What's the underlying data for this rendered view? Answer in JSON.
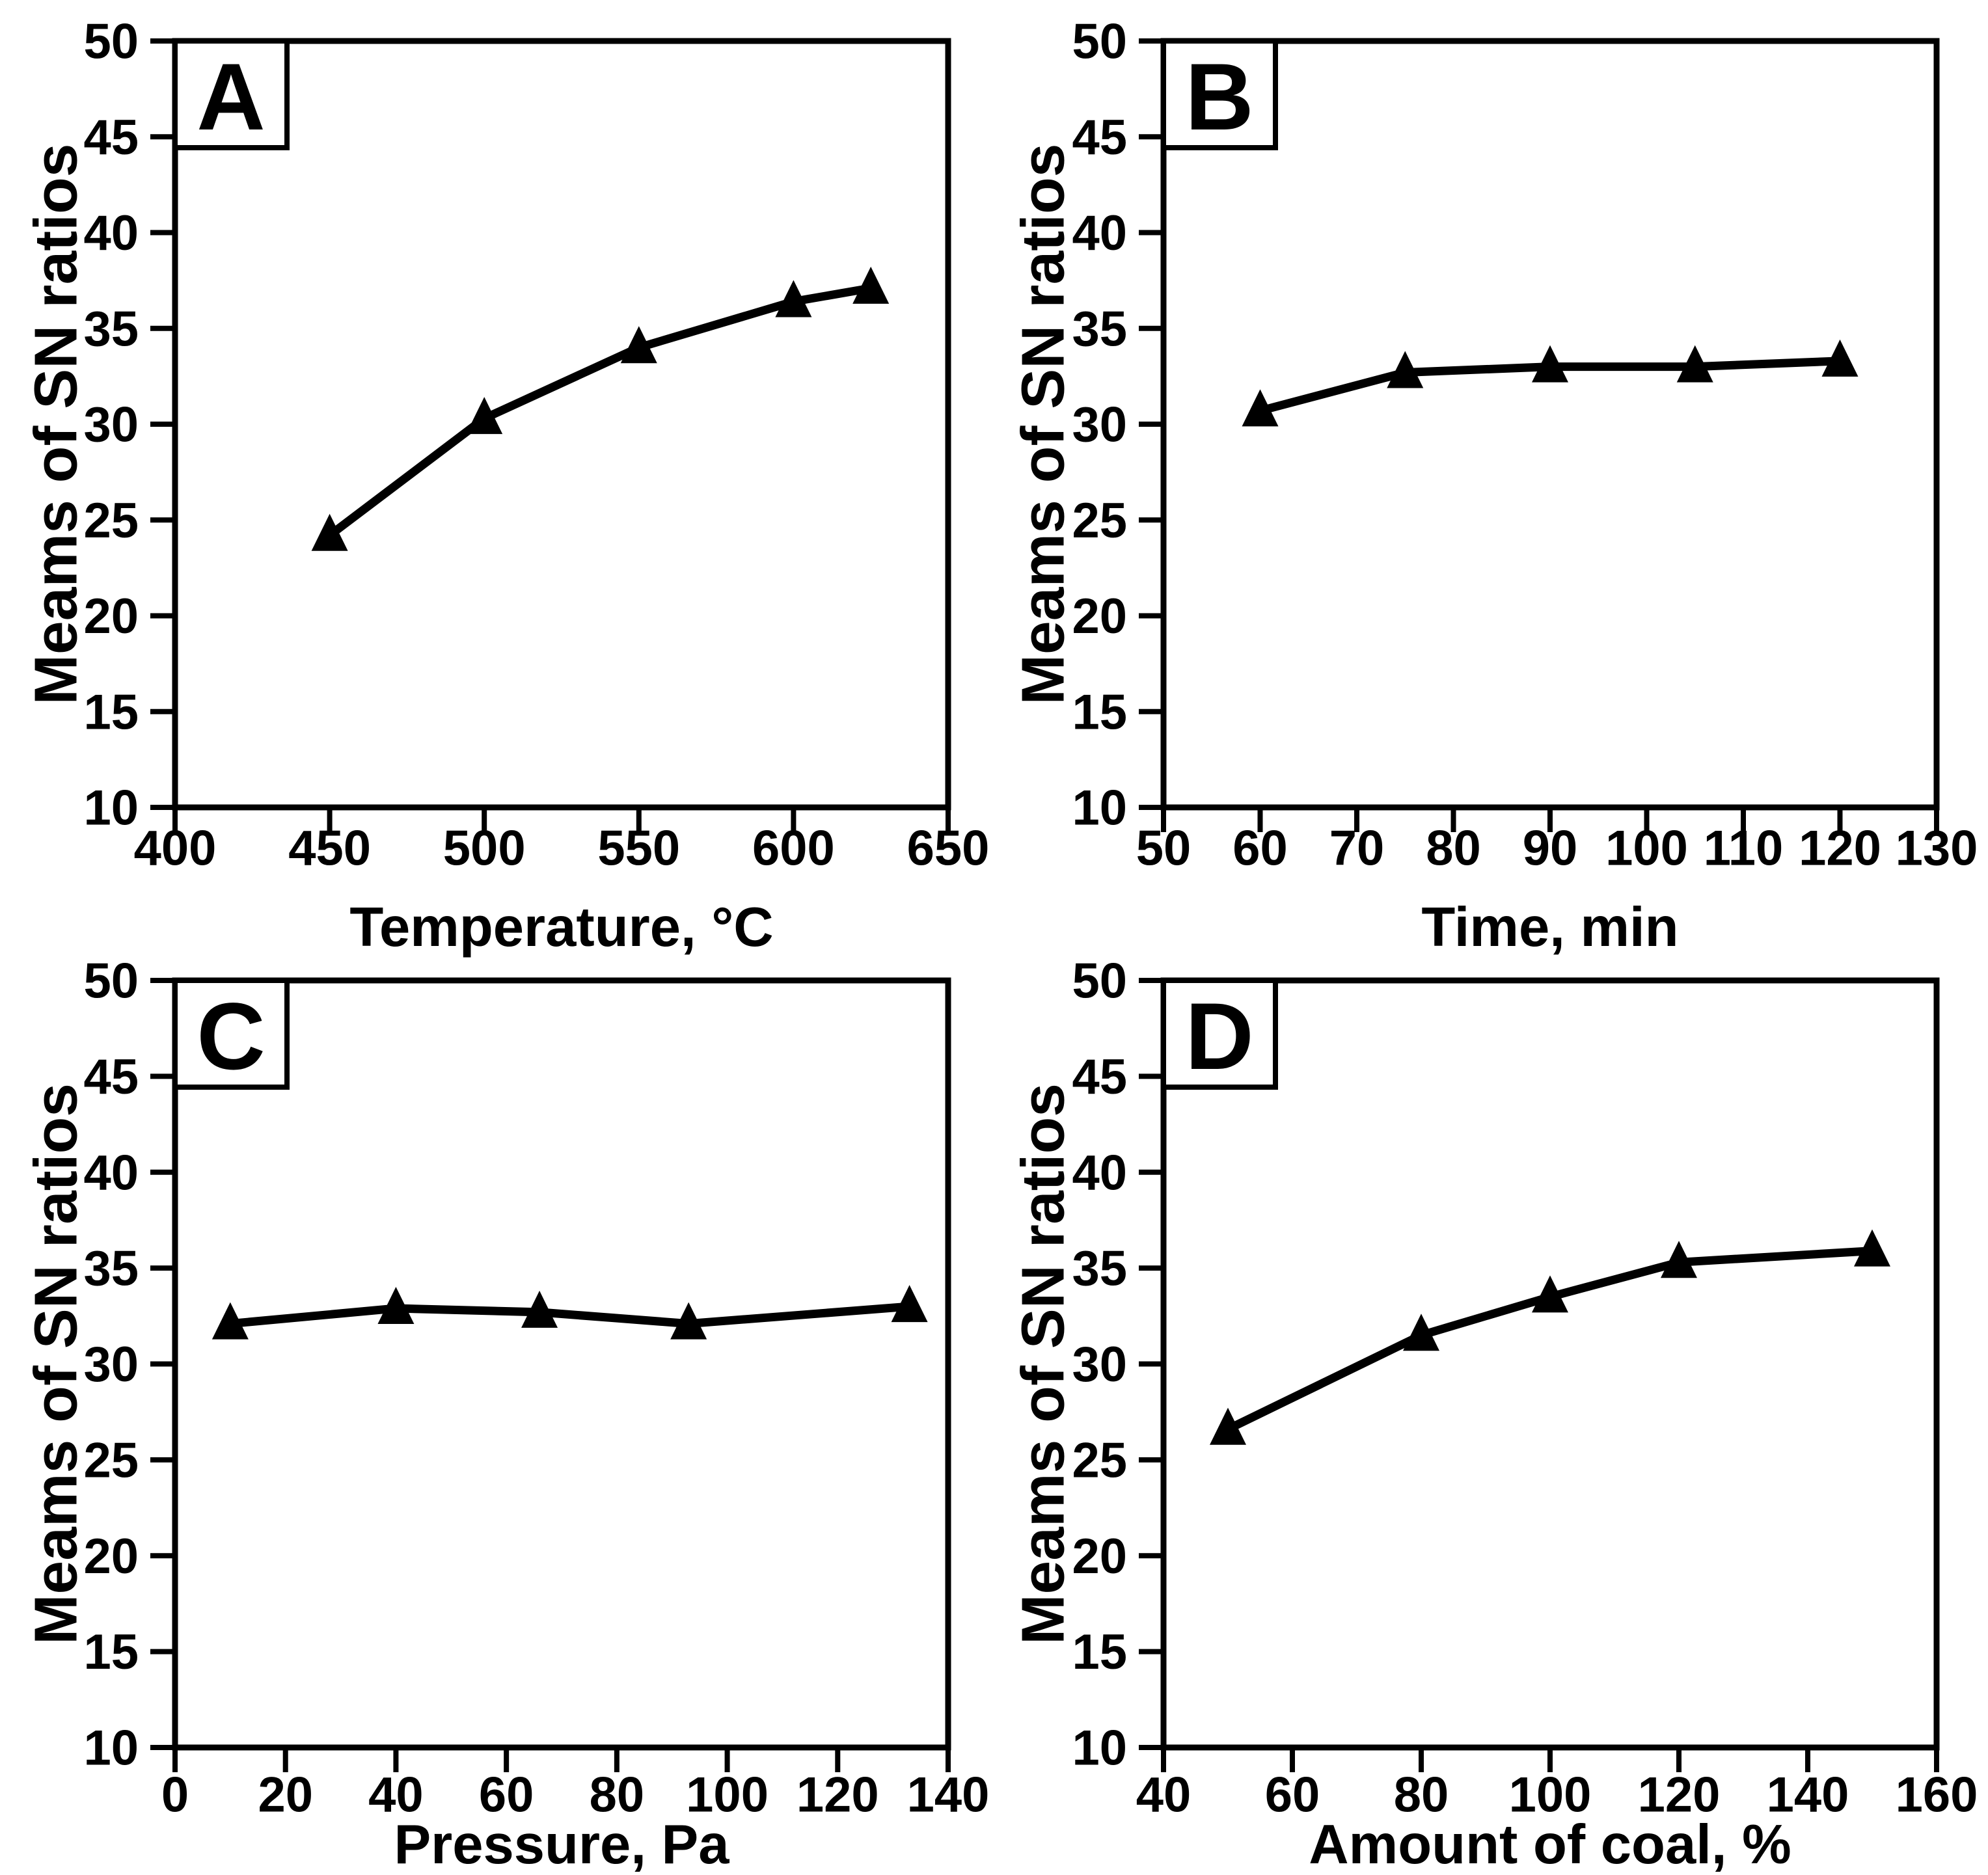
{
  "figure": {
    "background": "#ffffff",
    "axis_color": "#000000",
    "line_color": "#000000",
    "marker_color": "#000000",
    "marker_shape": "triangle-up"
  },
  "chart_data": [
    {
      "type": "line",
      "panel_label": "A",
      "xlabel": "Temperature, °C",
      "ylabel": "Meams of SN ratios",
      "xlim": [
        400,
        650
      ],
      "ylim": [
        10,
        50
      ],
      "xticks": [
        400,
        450,
        500,
        550,
        600,
        650
      ],
      "yticks": [
        10,
        15,
        20,
        25,
        30,
        35,
        40,
        45,
        50
      ],
      "grid": false,
      "legend": null,
      "x": [
        450,
        500,
        550,
        600,
        625
      ],
      "y": [
        24.2,
        30.3,
        34.0,
        36.4,
        37.1
      ]
    },
    {
      "type": "line",
      "panel_label": "B",
      "xlabel": "Time, min",
      "ylabel": "Meams of SN ratios",
      "xlim": [
        50,
        130
      ],
      "ylim": [
        10,
        50
      ],
      "xticks": [
        50,
        60,
        70,
        80,
        90,
        100,
        110,
        120,
        130
      ],
      "yticks": [
        10,
        15,
        20,
        25,
        30,
        35,
        40,
        45,
        50
      ],
      "grid": false,
      "legend": null,
      "x": [
        60,
        75,
        90,
        105,
        120
      ],
      "y": [
        30.7,
        32.7,
        33.0,
        33.0,
        33.3
      ]
    },
    {
      "type": "line",
      "panel_label": "C",
      "xlabel": "Pressure, Pa",
      "ylabel": "Meams of SN ratios",
      "xlim": [
        0,
        140
      ],
      "ylim": [
        10,
        50
      ],
      "xticks": [
        0,
        20,
        40,
        60,
        80,
        100,
        120,
        140
      ],
      "yticks": [
        10,
        15,
        20,
        25,
        30,
        35,
        40,
        45,
        50
      ],
      "grid": false,
      "legend": null,
      "x": [
        10,
        40,
        66,
        93,
        133
      ],
      "y": [
        32.1,
        32.9,
        32.7,
        32.1,
        33.0
      ]
    },
    {
      "type": "line",
      "panel_label": "D",
      "xlabel": "Amount of coal, %",
      "ylabel": "Meams of SN ratios",
      "xlim": [
        40,
        160
      ],
      "ylim": [
        10,
        50
      ],
      "xticks": [
        40,
        60,
        80,
        100,
        120,
        140,
        160
      ],
      "yticks": [
        10,
        15,
        20,
        25,
        30,
        35,
        40,
        45,
        50
      ],
      "grid": false,
      "legend": null,
      "x": [
        50,
        80,
        100,
        120,
        150
      ],
      "y": [
        26.6,
        31.5,
        33.5,
        35.3,
        35.9
      ]
    }
  ]
}
